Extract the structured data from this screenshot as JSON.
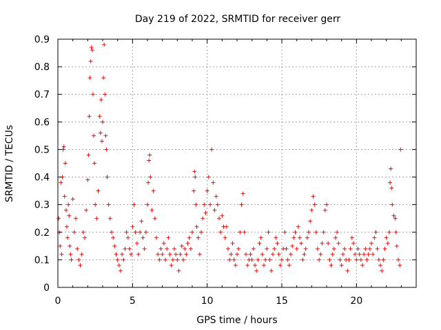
{
  "chart_data": {
    "type": "scatter",
    "title": "Day 219 of 2022, SRMTID for receiver gerr",
    "xlabel": "GPS time / hours",
    "ylabel": "SRMTID / TECUs",
    "xlim": [
      0,
      24
    ],
    "ylim": [
      0,
      0.9
    ],
    "x_ticks": [
      0,
      5,
      10,
      15,
      20
    ],
    "y_ticks": [
      0,
      0.1,
      0.2,
      0.3,
      0.4,
      0.5,
      0.6,
      0.7,
      0.8,
      0.9
    ],
    "x_tick_labels": [
      "0",
      "5",
      "10",
      "15",
      "20"
    ],
    "y_tick_labels": [
      "0",
      "0.1",
      "0.2",
      "0.3",
      "0.4",
      "0.5",
      "0.6",
      "0.7",
      "0.8",
      "0.9"
    ],
    "grid": true,
    "marker": "plus",
    "series": [
      {
        "name": "SRMTID",
        "color": "#ff0000",
        "points": [
          [
            0.05,
            0.25
          ],
          [
            0.1,
            0.2
          ],
          [
            0.15,
            0.15
          ],
          [
            0.2,
            0.38
          ],
          [
            0.25,
            0.12
          ],
          [
            0.3,
            0.4
          ],
          [
            0.35,
            0.5
          ],
          [
            0.4,
            0.51
          ],
          [
            0.45,
            0.33
          ],
          [
            0.5,
            0.45
          ],
          [
            0.55,
            0.28
          ],
          [
            0.6,
            0.22
          ],
          [
            0.65,
            0.18
          ],
          [
            0.7,
            0.3
          ],
          [
            0.75,
            0.26
          ],
          [
            0.8,
            0.15
          ],
          [
            0.85,
            0.12
          ],
          [
            0.9,
            0.1
          ],
          [
            1.0,
            0.32
          ],
          [
            1.1,
            0.2
          ],
          [
            1.2,
            0.25
          ],
          [
            1.3,
            0.14
          ],
          [
            1.4,
            0.1
          ],
          [
            1.5,
            0.08
          ],
          [
            1.6,
            0.12
          ],
          [
            1.7,
            0.2
          ],
          [
            1.8,
            0.18
          ],
          [
            1.9,
            0.28
          ],
          [
            2.0,
            0.39
          ],
          [
            2.05,
            0.48
          ],
          [
            2.1,
            0.62
          ],
          [
            2.15,
            0.76
          ],
          [
            2.2,
            0.82
          ],
          [
            2.25,
            0.87
          ],
          [
            2.3,
            0.86
          ],
          [
            2.35,
            0.7
          ],
          [
            2.4,
            0.55
          ],
          [
            2.45,
            0.45
          ],
          [
            2.5,
            0.3
          ],
          [
            2.6,
            0.25
          ],
          [
            2.7,
            0.35
          ],
          [
            2.8,
            0.62
          ],
          [
            2.85,
            0.56
          ],
          [
            2.9,
            0.68
          ],
          [
            2.95,
            0.53
          ],
          [
            3.0,
            0.6
          ],
          [
            3.05,
            0.76
          ],
          [
            3.1,
            0.88
          ],
          [
            3.15,
            0.7
          ],
          [
            3.2,
            0.55
          ],
          [
            3.25,
            0.5
          ],
          [
            3.3,
            0.4
          ],
          [
            3.4,
            0.3
          ],
          [
            3.5,
            0.25
          ],
          [
            3.6,
            0.2
          ],
          [
            3.7,
            0.18
          ],
          [
            3.8,
            0.15
          ],
          [
            3.9,
            0.12
          ],
          [
            4.0,
            0.1
          ],
          [
            4.1,
            0.08
          ],
          [
            4.2,
            0.06
          ],
          [
            4.3,
            0.12
          ],
          [
            4.4,
            0.1
          ],
          [
            4.5,
            0.14
          ],
          [
            4.6,
            0.2
          ],
          [
            4.7,
            0.18
          ],
          [
            4.8,
            0.14
          ],
          [
            4.9,
            0.12
          ],
          [
            5.0,
            0.22
          ],
          [
            5.1,
            0.3
          ],
          [
            5.2,
            0.2
          ],
          [
            5.3,
            0.16
          ],
          [
            5.4,
            0.12
          ],
          [
            5.5,
            0.2
          ],
          [
            5.6,
            0.24
          ],
          [
            5.7,
            0.18
          ],
          [
            5.8,
            0.14
          ],
          [
            5.9,
            0.2
          ],
          [
            6.0,
            0.3
          ],
          [
            6.05,
            0.38
          ],
          [
            6.1,
            0.46
          ],
          [
            6.15,
            0.48
          ],
          [
            6.2,
            0.4
          ],
          [
            6.3,
            0.28
          ],
          [
            6.4,
            0.35
          ],
          [
            6.5,
            0.25
          ],
          [
            6.6,
            0.18
          ],
          [
            6.7,
            0.12
          ],
          [
            6.8,
            0.1
          ],
          [
            6.9,
            0.14
          ],
          [
            7.0,
            0.12
          ],
          [
            7.1,
            0.16
          ],
          [
            7.2,
            0.1
          ],
          [
            7.3,
            0.14
          ],
          [
            7.4,
            0.18
          ],
          [
            7.5,
            0.12
          ],
          [
            7.6,
            0.08
          ],
          [
            7.7,
            0.1
          ],
          [
            7.8,
            0.14
          ],
          [
            7.9,
            0.12
          ],
          [
            8.0,
            0.1
          ],
          [
            8.1,
            0.06
          ],
          [
            8.2,
            0.12
          ],
          [
            8.3,
            0.15
          ],
          [
            8.4,
            0.1
          ],
          [
            8.5,
            0.14
          ],
          [
            8.6,
            0.12
          ],
          [
            8.7,
            0.16
          ],
          [
            8.8,
            0.18
          ],
          [
            8.9,
            0.14
          ],
          [
            9.0,
            0.2
          ],
          [
            9.1,
            0.35
          ],
          [
            9.15,
            0.42
          ],
          [
            9.2,
            0.4
          ],
          [
            9.25,
            0.3
          ],
          [
            9.3,
            0.22
          ],
          [
            9.4,
            0.18
          ],
          [
            9.5,
            0.12
          ],
          [
            9.6,
            0.2
          ],
          [
            9.7,
            0.25
          ],
          [
            9.8,
            0.3
          ],
          [
            9.9,
            0.27
          ],
          [
            10.0,
            0.35
          ],
          [
            10.1,
            0.4
          ],
          [
            10.2,
            0.3
          ],
          [
            10.3,
            0.5
          ],
          [
            10.4,
            0.38
          ],
          [
            10.5,
            0.28
          ],
          [
            10.6,
            0.33
          ],
          [
            10.7,
            0.3
          ],
          [
            10.8,
            0.25
          ],
          [
            10.9,
            0.2
          ],
          [
            11.0,
            0.26
          ],
          [
            11.1,
            0.22
          ],
          [
            11.2,
            0.18
          ],
          [
            11.3,
            0.22
          ],
          [
            11.4,
            0.14
          ],
          [
            11.5,
            0.1
          ],
          [
            11.6,
            0.12
          ],
          [
            11.7,
            0.16
          ],
          [
            11.8,
            0.1
          ],
          [
            11.9,
            0.08
          ],
          [
            12.0,
            0.12
          ],
          [
            12.1,
            0.14
          ],
          [
            12.2,
            0.2
          ],
          [
            12.3,
            0.3
          ],
          [
            12.4,
            0.34
          ],
          [
            12.5,
            0.2
          ],
          [
            12.6,
            0.12
          ],
          [
            12.7,
            0.08
          ],
          [
            12.8,
            0.1
          ],
          [
            12.9,
            0.12
          ],
          [
            13.0,
            0.1
          ],
          [
            13.1,
            0.14
          ],
          [
            13.2,
            0.08
          ],
          [
            13.3,
            0.06
          ],
          [
            13.4,
            0.1
          ],
          [
            13.5,
            0.16
          ],
          [
            13.6,
            0.18
          ],
          [
            13.7,
            0.12
          ],
          [
            13.8,
            0.08
          ],
          [
            13.9,
            0.1
          ],
          [
            14.0,
            0.14
          ],
          [
            14.1,
            0.2
          ],
          [
            14.2,
            0.1
          ],
          [
            14.3,
            0.06
          ],
          [
            14.4,
            0.12
          ],
          [
            14.5,
            0.14
          ],
          [
            14.6,
            0.18
          ],
          [
            14.7,
            0.16
          ],
          [
            14.8,
            0.12
          ],
          [
            14.9,
            0.08
          ],
          [
            15.0,
            0.1
          ],
          [
            15.1,
            0.14
          ],
          [
            15.2,
            0.2
          ],
          [
            15.3,
            0.14
          ],
          [
            15.4,
            0.1
          ],
          [
            15.5,
            0.08
          ],
          [
            15.6,
            0.12
          ],
          [
            15.7,
            0.15
          ],
          [
            15.8,
            0.18
          ],
          [
            15.9,
            0.2
          ],
          [
            16.0,
            0.14
          ],
          [
            16.1,
            0.22
          ],
          [
            16.2,
            0.18
          ],
          [
            16.3,
            0.16
          ],
          [
            16.4,
            0.1
          ],
          [
            16.5,
            0.12
          ],
          [
            16.6,
            0.14
          ],
          [
            16.7,
            0.18
          ],
          [
            16.8,
            0.2
          ],
          [
            16.9,
            0.24
          ],
          [
            17.0,
            0.28
          ],
          [
            17.1,
            0.33
          ],
          [
            17.2,
            0.3
          ],
          [
            17.3,
            0.2
          ],
          [
            17.4,
            0.14
          ],
          [
            17.5,
            0.1
          ],
          [
            17.6,
            0.12
          ],
          [
            17.7,
            0.16
          ],
          [
            17.8,
            0.2
          ],
          [
            17.9,
            0.28
          ],
          [
            18.0,
            0.3
          ],
          [
            18.1,
            0.16
          ],
          [
            18.2,
            0.1
          ],
          [
            18.3,
            0.08
          ],
          [
            18.4,
            0.12
          ],
          [
            18.5,
            0.14
          ],
          [
            18.6,
            0.18
          ],
          [
            18.7,
            0.2
          ],
          [
            18.8,
            0.16
          ],
          [
            18.9,
            0.1
          ],
          [
            19.0,
            0.08
          ],
          [
            19.1,
            0.12
          ],
          [
            19.2,
            0.14
          ],
          [
            19.3,
            0.1
          ],
          [
            19.4,
            0.06
          ],
          [
            19.5,
            0.1
          ],
          [
            19.6,
            0.14
          ],
          [
            19.7,
            0.18
          ],
          [
            19.8,
            0.16
          ],
          [
            19.9,
            0.12
          ],
          [
            20.0,
            0.1
          ],
          [
            20.1,
            0.14
          ],
          [
            20.2,
            0.12
          ],
          [
            20.3,
            0.1
          ],
          [
            20.4,
            0.08
          ],
          [
            20.5,
            0.12
          ],
          [
            20.6,
            0.14
          ],
          [
            20.7,
            0.1
          ],
          [
            20.8,
            0.12
          ],
          [
            20.9,
            0.14
          ],
          [
            21.0,
            0.16
          ],
          [
            21.1,
            0.12
          ],
          [
            21.2,
            0.18
          ],
          [
            21.3,
            0.2
          ],
          [
            21.4,
            0.14
          ],
          [
            21.5,
            0.1
          ],
          [
            21.6,
            0.08
          ],
          [
            21.7,
            0.06
          ],
          [
            21.8,
            0.1
          ],
          [
            21.9,
            0.14
          ],
          [
            22.0,
            0.18
          ],
          [
            22.1,
            0.16
          ],
          [
            22.2,
            0.2
          ],
          [
            22.25,
            0.38
          ],
          [
            22.3,
            0.43
          ],
          [
            22.35,
            0.36
          ],
          [
            22.4,
            0.3
          ],
          [
            22.5,
            0.26
          ],
          [
            22.6,
            0.25
          ],
          [
            22.65,
            0.2
          ],
          [
            22.7,
            0.15
          ],
          [
            22.8,
            0.1
          ],
          [
            22.9,
            0.08
          ],
          [
            22.95,
            0.5
          ]
        ]
      }
    ]
  }
}
